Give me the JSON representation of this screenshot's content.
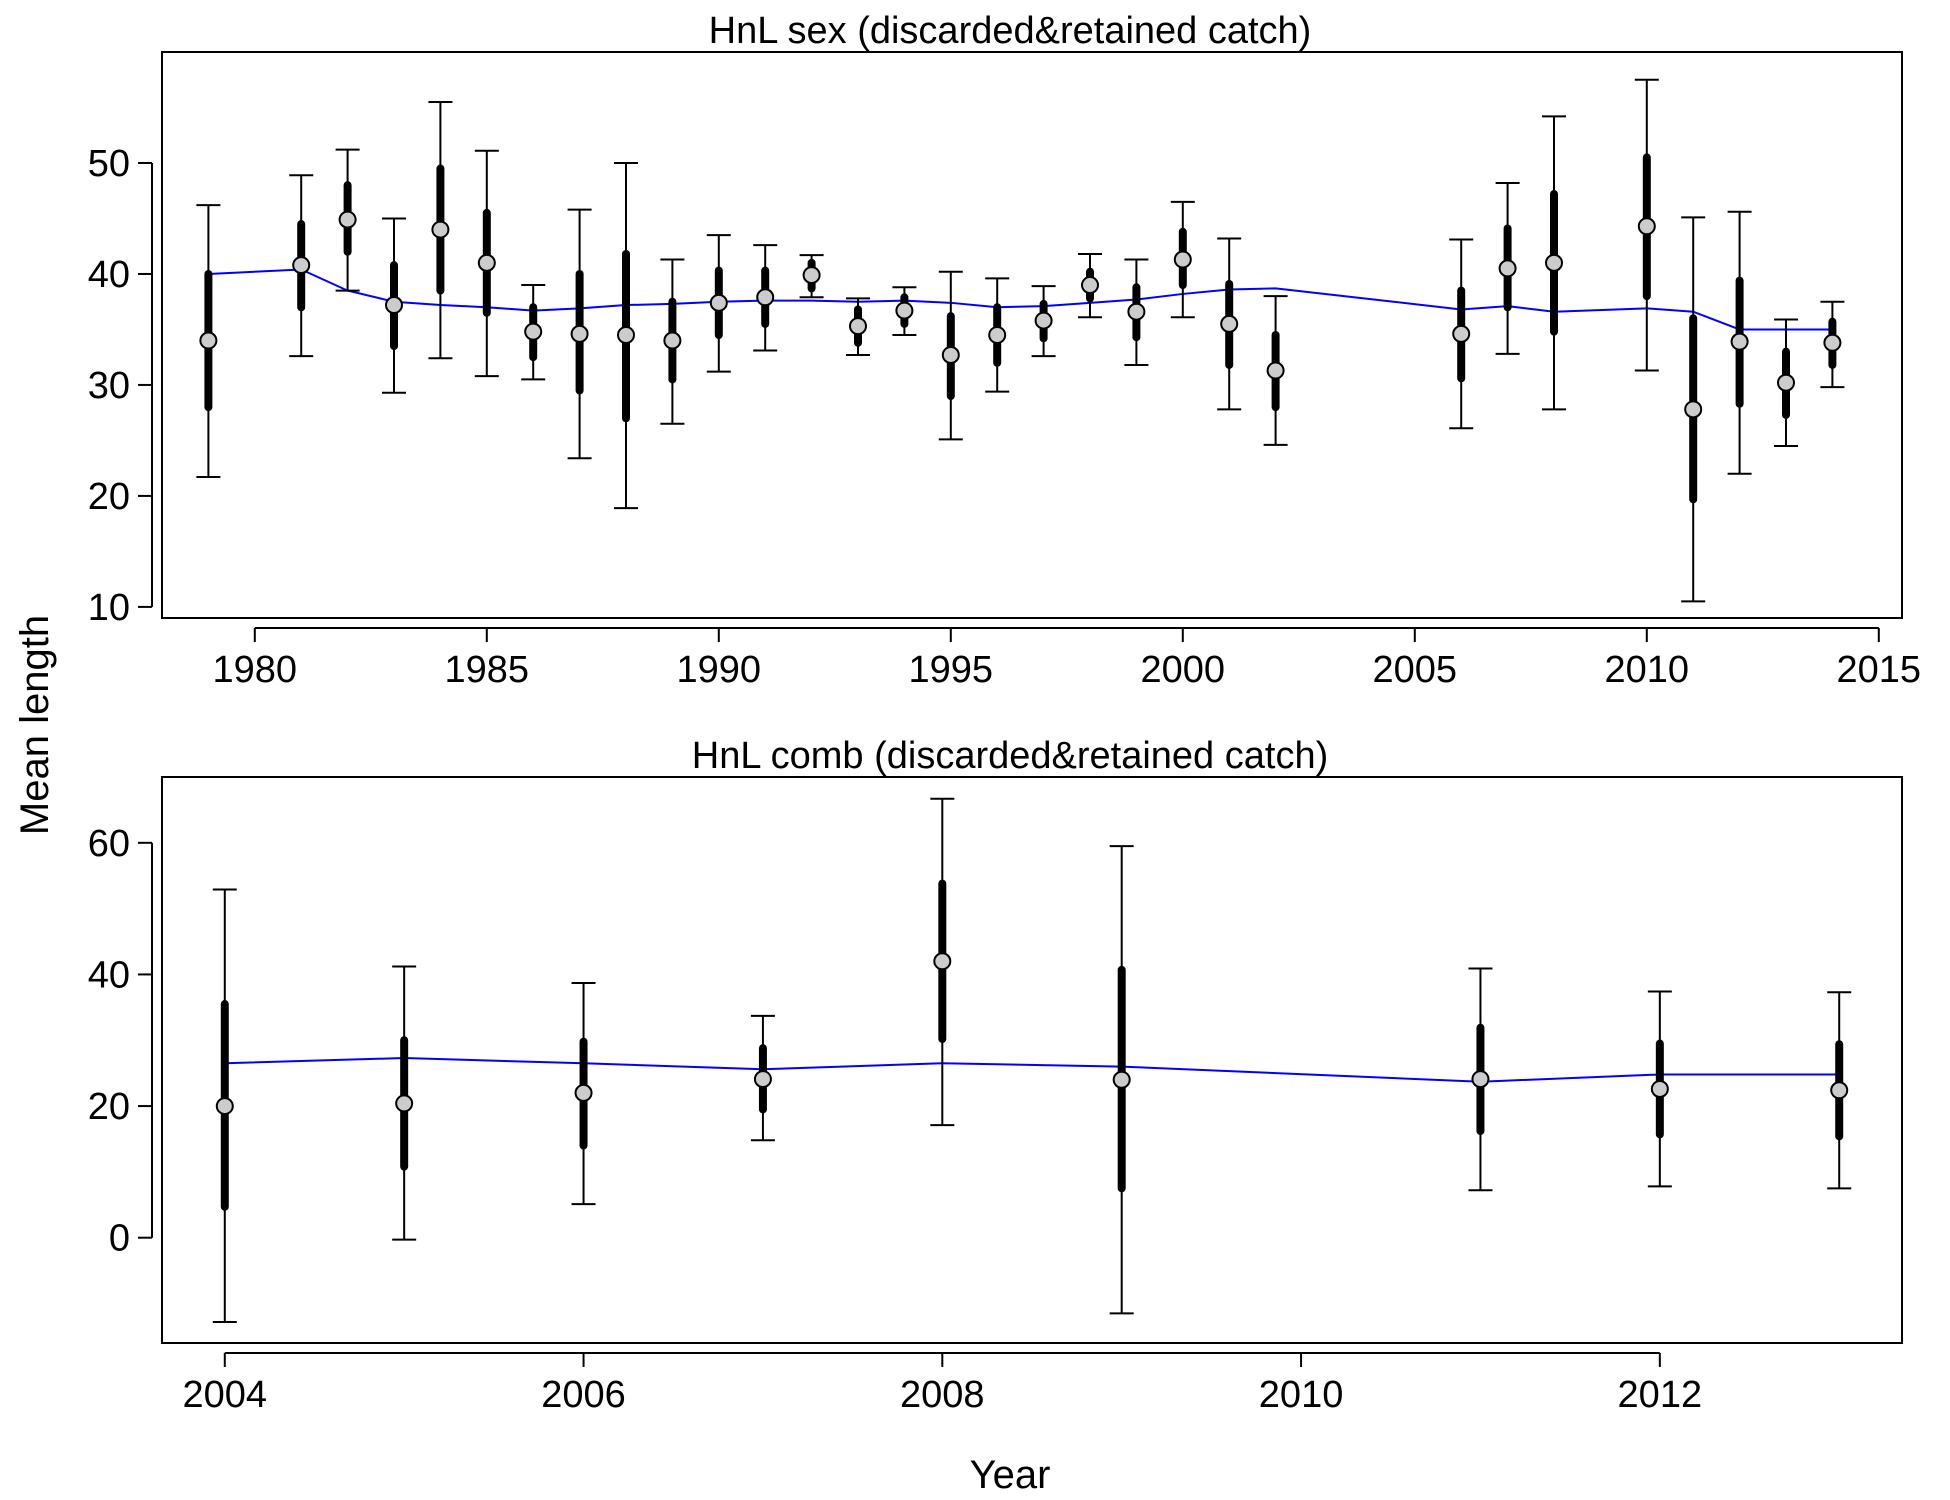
{
  "ylabel": "Mean length",
  "xlabel": "Year",
  "chart_data": [
    {
      "type": "errorbar",
      "title": "HnL sex (discarded&retained catch)",
      "xlim": [
        1978,
        2015.5
      ],
      "ylim": [
        9,
        60
      ],
      "xticks": [
        1980,
        1985,
        1990,
        1995,
        2000,
        2005,
        2010,
        2015
      ],
      "yticks": [
        10,
        20,
        30,
        40,
        50
      ],
      "observed": [
        {
          "x": 1979,
          "y": 34,
          "inner": [
            28,
            40
          ],
          "outer": [
            21.7,
            46.2
          ]
        },
        {
          "x": 1981,
          "y": 40.8,
          "inner": [
            37,
            44.5
          ],
          "outer": [
            32.6,
            48.9
          ]
        },
        {
          "x": 1982,
          "y": 44.9,
          "inner": [
            42,
            48
          ],
          "outer": [
            38.5,
            51.2
          ]
        },
        {
          "x": 1983,
          "y": 37.2,
          "inner": [
            33.5,
            40.8
          ],
          "outer": [
            29.3,
            45
          ]
        },
        {
          "x": 1984,
          "y": 44,
          "inner": [
            38.5,
            49.5
          ],
          "outer": [
            32.4,
            55.5
          ]
        },
        {
          "x": 1985,
          "y": 41,
          "inner": [
            36.5,
            45.5
          ],
          "outer": [
            30.8,
            51.1
          ]
        },
        {
          "x": 1986,
          "y": 34.8,
          "inner": [
            32.5,
            37
          ],
          "outer": [
            30.5,
            39
          ]
        },
        {
          "x": 1987,
          "y": 34.6,
          "inner": [
            29.5,
            40
          ],
          "outer": [
            23.4,
            45.8
          ]
        },
        {
          "x": 1988,
          "y": 34.5,
          "inner": [
            27,
            41.8
          ],
          "outer": [
            18.9,
            50
          ]
        },
        {
          "x": 1989,
          "y": 34,
          "inner": [
            30.5,
            37.5
          ],
          "outer": [
            26.5,
            41.3
          ]
        },
        {
          "x": 1990,
          "y": 37.4,
          "inner": [
            34.5,
            40.3
          ],
          "outer": [
            31.2,
            43.5
          ]
        },
        {
          "x": 1991,
          "y": 37.9,
          "inner": [
            35.5,
            40.3
          ],
          "outer": [
            33.1,
            42.6
          ]
        },
        {
          "x": 1992,
          "y": 39.9,
          "inner": [
            38.7,
            41
          ],
          "outer": [
            37.9,
            41.7
          ]
        },
        {
          "x": 1993,
          "y": 35.3,
          "inner": [
            33.8,
            36.8
          ],
          "outer": [
            32.7,
            37.8
          ]
        },
        {
          "x": 1994,
          "y": 36.7,
          "inner": [
            35.5,
            37.9
          ],
          "outer": [
            34.5,
            38.8
          ]
        },
        {
          "x": 1995,
          "y": 32.7,
          "inner": [
            29,
            36.2
          ],
          "outer": [
            25.1,
            40.2
          ]
        },
        {
          "x": 1996,
          "y": 34.5,
          "inner": [
            32,
            37
          ],
          "outer": [
            29.4,
            39.6
          ]
        },
        {
          "x": 1997,
          "y": 35.8,
          "inner": [
            34.2,
            37.3
          ],
          "outer": [
            32.6,
            38.9
          ]
        },
        {
          "x": 1998,
          "y": 39,
          "inner": [
            37.8,
            40.2
          ],
          "outer": [
            36.1,
            41.8
          ]
        },
        {
          "x": 1999,
          "y": 36.6,
          "inner": [
            34.3,
            38.8
          ],
          "outer": [
            31.8,
            41.3
          ]
        },
        {
          "x": 2000,
          "y": 41.3,
          "inner": [
            39,
            43.8
          ],
          "outer": [
            36.1,
            46.5
          ]
        },
        {
          "x": 2001,
          "y": 35.5,
          "inner": [
            31.8,
            39.1
          ],
          "outer": [
            27.8,
            43.2
          ]
        },
        {
          "x": 2002,
          "y": 31.3,
          "inner": [
            28,
            34.5
          ],
          "outer": [
            24.6,
            38
          ]
        },
        {
          "x": 2006,
          "y": 34.6,
          "inner": [
            30.6,
            38.5
          ],
          "outer": [
            26.1,
            43.1
          ]
        },
        {
          "x": 2007,
          "y": 40.5,
          "inner": [
            37,
            44.1
          ],
          "outer": [
            32.8,
            48.2
          ]
        },
        {
          "x": 2008,
          "y": 41,
          "inner": [
            34.8,
            47.2
          ],
          "outer": [
            27.8,
            54.2
          ]
        },
        {
          "x": 2010,
          "y": 44.3,
          "inner": [
            38,
            50.5
          ],
          "outer": [
            31.3,
            57.5
          ]
        },
        {
          "x": 2011,
          "y": 27.8,
          "inner": [
            19.7,
            36
          ],
          "outer": [
            10.5,
            45.1
          ]
        },
        {
          "x": 2012,
          "y": 33.9,
          "inner": [
            28.3,
            39.4
          ],
          "outer": [
            22,
            45.6
          ]
        },
        {
          "x": 2013,
          "y": 30.2,
          "inner": [
            27.3,
            33
          ],
          "outer": [
            24.5,
            35.9
          ]
        },
        {
          "x": 2014,
          "y": 33.8,
          "inner": [
            31.8,
            35.7
          ],
          "outer": [
            29.8,
            37.5
          ]
        }
      ],
      "expected": {
        "color": "#0000ff",
        "x": [
          1979,
          1981,
          1982,
          1983,
          1984,
          1985,
          1986,
          1987,
          1988,
          1989,
          1990,
          1991,
          1992,
          1993,
          1994,
          1995,
          1996,
          1997,
          1998,
          1999,
          2000,
          2001,
          2002,
          2006,
          2007,
          2008,
          2010,
          2011,
          2012,
          2013,
          2014
        ],
        "y": [
          40,
          40.4,
          38.5,
          37.5,
          37.2,
          37,
          36.7,
          36.9,
          37.2,
          37.3,
          37.5,
          37.6,
          37.6,
          37.5,
          37.6,
          37.4,
          37,
          37.1,
          37.4,
          37.7,
          38.2,
          38.6,
          38.7,
          36.8,
          37.1,
          36.6,
          36.9,
          36.6,
          35,
          35,
          35
        ]
      }
    },
    {
      "type": "errorbar",
      "title": "HnL comb (discarded&retained catch)",
      "xlim": [
        2003.65,
        2013.35
      ],
      "ylim": [
        -16,
        70
      ],
      "xticks": [
        2004,
        2006,
        2008,
        2010,
        2012
      ],
      "yticks": [
        0,
        20,
        40,
        60
      ],
      "observed": [
        {
          "x": 2004,
          "y": 20,
          "inner": [
            4.7,
            35.5
          ],
          "outer": [
            -12.8,
            52.9
          ]
        },
        {
          "x": 2005,
          "y": 20.4,
          "inner": [
            10.8,
            30
          ],
          "outer": [
            -0.3,
            41.2
          ]
        },
        {
          "x": 2006,
          "y": 22,
          "inner": [
            14,
            29.8
          ],
          "outer": [
            5.1,
            38.7
          ]
        },
        {
          "x": 2007,
          "y": 24.1,
          "inner": [
            19.5,
            28.8
          ],
          "outer": [
            14.8,
            33.7
          ]
        },
        {
          "x": 2008,
          "y": 42,
          "inner": [
            30.2,
            53.8
          ],
          "outer": [
            17.1,
            66.7
          ]
        },
        {
          "x": 2009,
          "y": 24,
          "inner": [
            7.5,
            40.7
          ],
          "outer": [
            -11.5,
            59.5
          ]
        },
        {
          "x": 2011,
          "y": 24.1,
          "inner": [
            16.2,
            31.9
          ],
          "outer": [
            7.2,
            40.9
          ]
        },
        {
          "x": 2012,
          "y": 22.6,
          "inner": [
            15.7,
            29.5
          ],
          "outer": [
            7.8,
            37.4
          ]
        },
        {
          "x": 2013,
          "y": 22.4,
          "inner": [
            15.4,
            29.4
          ],
          "outer": [
            7.5,
            37.3
          ]
        }
      ],
      "expected": {
        "color": "#0000ff",
        "x": [
          2004,
          2005,
          2006,
          2007,
          2008,
          2009,
          2011,
          2012,
          2013
        ],
        "y": [
          26.5,
          27.3,
          26.5,
          25.6,
          26.5,
          26,
          23.7,
          24.8,
          24.8
        ]
      }
    }
  ]
}
